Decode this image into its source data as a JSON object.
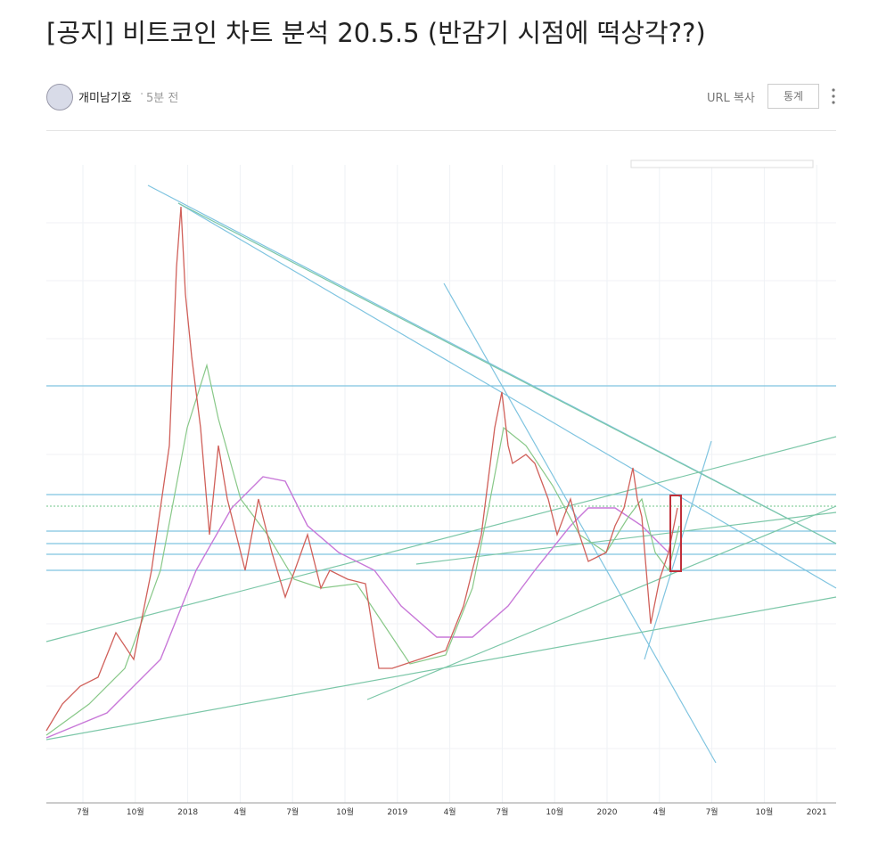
{
  "post": {
    "title": "[공지] 비트코인 차트 분석 20.5.5 (반감기 시점에 떡상각??)",
    "author": "개미남기호",
    "time": "5분 전",
    "url_copy": "URL 복사",
    "stats": "통계"
  },
  "chart": {
    "x_labels": [
      "7월",
      "10월",
      "2018",
      "4월",
      "7월",
      "10월",
      "2019",
      "4월",
      "7월",
      "10월",
      "2020",
      "4월",
      "7월",
      "10월",
      "2021"
    ]
  }
}
